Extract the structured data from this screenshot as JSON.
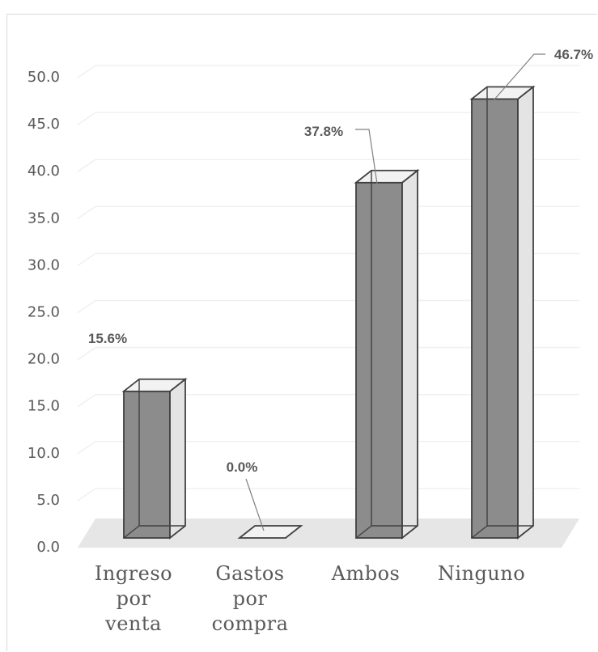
{
  "chart_data": {
    "type": "bar",
    "style": "3d-column",
    "categories": [
      [
        "Ingreso",
        "por",
        "venta"
      ],
      [
        "Gastos",
        "por",
        "compra"
      ],
      [
        "Ambos"
      ],
      [
        "Ninguno"
      ]
    ],
    "values": [
      15.6,
      0.0,
      37.8,
      46.7
    ],
    "data_labels": [
      "15.6%",
      "0.0%",
      "37.8%",
      "46.7%"
    ],
    "y_ticks": [
      "0.0",
      "5.0",
      "10.0",
      "15.0",
      "20.0",
      "25.0",
      "30.0",
      "35.0",
      "40.0",
      "45.0",
      "50.0"
    ],
    "ylim": [
      0,
      50
    ],
    "grid": true,
    "legend": "none",
    "colors": {
      "bar_front": "#8c8c8c",
      "bar_side": "#e4e4e4",
      "bar_top": "#f2f2f2",
      "outline": "#404040",
      "grid": "#f0f0f0",
      "floor": "#e6e6e6",
      "text": "#595959"
    }
  }
}
